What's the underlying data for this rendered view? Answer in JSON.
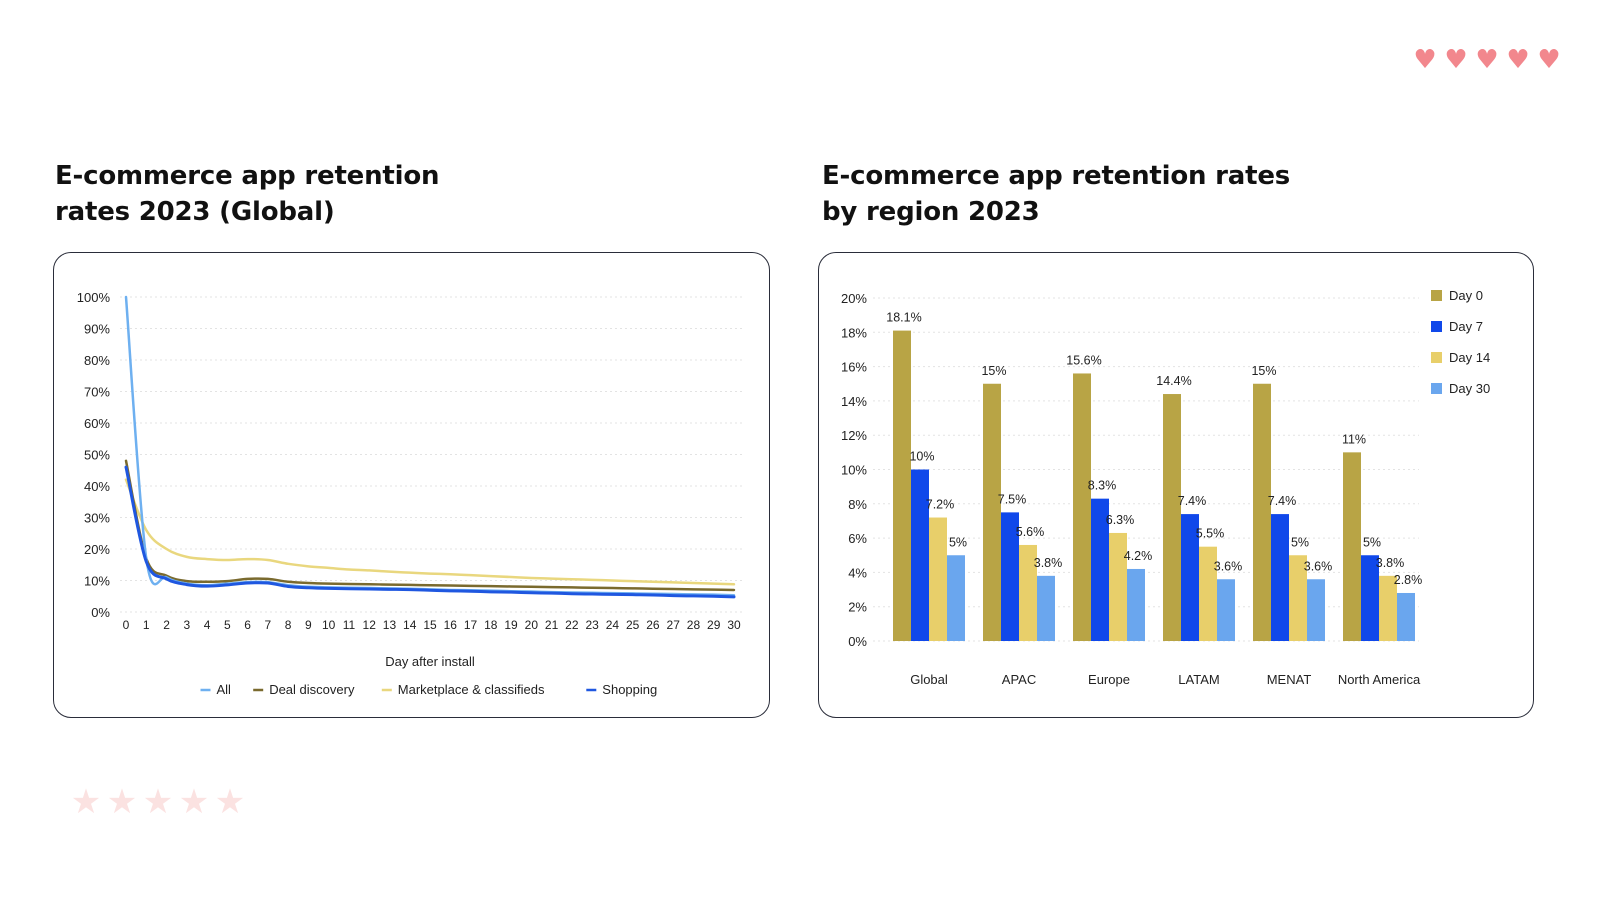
{
  "decor": {
    "hearts": [
      "♥",
      "♥",
      "♥",
      "♥",
      "♥"
    ],
    "hearts_color": "#f2878d",
    "stars": [
      "★",
      "★",
      "★",
      "★",
      "★"
    ],
    "stars_color": "#fbe2e1"
  },
  "left": {
    "title_line1": "E-commerce app retention",
    "title_line2": "rates 2023 (Global)"
  },
  "right": {
    "title_line1": "E-commerce app retention rates",
    "title_line2": "by region 2023"
  },
  "chart_data": [
    {
      "type": "line",
      "title": "E-commerce app retention rates 2023 (Global)",
      "xlabel": "Day after install",
      "ylabel": "",
      "x": [
        0,
        1,
        2,
        3,
        4,
        5,
        6,
        7,
        8,
        9,
        10,
        11,
        12,
        13,
        14,
        15,
        16,
        17,
        18,
        19,
        20,
        21,
        22,
        23,
        24,
        25,
        26,
        27,
        28,
        29,
        30
      ],
      "yticks": [
        "0%",
        "10%",
        "20%",
        "30%",
        "40%",
        "50%",
        "60%",
        "70%",
        "80%",
        "90%",
        "100%"
      ],
      "ylim": [
        0,
        100
      ],
      "grid": true,
      "legend": "bottom",
      "series": [
        {
          "name": "All",
          "color": "#6eb0f0",
          "values": [
            100,
            17,
            11,
            9,
            8.5,
            9,
            9.5,
            9.5,
            8.5,
            8,
            7.8,
            7.7,
            7.6,
            7.5,
            7.4,
            7.2,
            7,
            6.9,
            6.8,
            6.6,
            6.5,
            6.3,
            6.2,
            6.1,
            6,
            5.9,
            5.8,
            5.7,
            5.6,
            5.5,
            5.3
          ]
        },
        {
          "name": "Deal discovery",
          "color": "#7a6a2e",
          "values": [
            48,
            17,
            11.5,
            9.8,
            9.6,
            9.8,
            10.5,
            10.5,
            9.6,
            9.2,
            9,
            8.9,
            8.8,
            8.7,
            8.6,
            8.5,
            8.4,
            8.3,
            8.2,
            8.1,
            8,
            7.9,
            7.8,
            7.7,
            7.6,
            7.5,
            7.4,
            7.3,
            7.2,
            7.1,
            7
          ]
        },
        {
          "name": "Marketplace & classifieds",
          "color": "#e9d77e",
          "values": [
            42,
            26,
            20,
            17.5,
            16.8,
            16.5,
            16.8,
            16.5,
            15.3,
            14.5,
            14,
            13.5,
            13.2,
            12.8,
            12.5,
            12.2,
            12,
            11.7,
            11.4,
            11.1,
            10.8,
            10.6,
            10.4,
            10.2,
            10,
            9.8,
            9.6,
            9.4,
            9.2,
            9,
            8.8
          ]
        },
        {
          "name": "Shopping",
          "color": "#1f57e0",
          "values": [
            46,
            16,
            10.5,
            8.7,
            8.2,
            8.6,
            9.2,
            9.2,
            8.1,
            7.7,
            7.5,
            7.4,
            7.3,
            7.2,
            7.1,
            6.9,
            6.7,
            6.6,
            6.4,
            6.3,
            6.1,
            6,
            5.8,
            5.7,
            5.6,
            5.5,
            5.4,
            5.2,
            5.1,
            5,
            4.8
          ]
        }
      ]
    },
    {
      "type": "bar",
      "title": "E-commerce app retention rates by region 2023",
      "xlabel": "",
      "ylabel": "",
      "categories": [
        "Global",
        "APAC",
        "Europe",
        "LATAM",
        "MENAT",
        "North America"
      ],
      "yticks": [
        "0%",
        "2%",
        "4%",
        "6%",
        "8%",
        "10%",
        "12%",
        "14%",
        "16%",
        "18%",
        "20%"
      ],
      "ylim": [
        0,
        20
      ],
      "grid": true,
      "legend": "top-right",
      "series": [
        {
          "name": "Day 0",
          "color": "#b8a445",
          "values": [
            18.1,
            15,
            15.6,
            14.4,
            15,
            11
          ],
          "labels": [
            "18.1%",
            "15%",
            "15.6%",
            "14.4%",
            "15%",
            "11%"
          ]
        },
        {
          "name": "Day 7",
          "color": "#1048ea",
          "values": [
            10,
            7.5,
            8.3,
            7.4,
            7.4,
            5
          ],
          "labels": [
            "10%",
            "7.5%",
            "8.3%",
            "7.4%",
            "7.4%",
            "5%"
          ]
        },
        {
          "name": "Day 14",
          "color": "#e8cf6a",
          "values": [
            7.2,
            5.6,
            6.3,
            5.5,
            5,
            3.8
          ],
          "labels": [
            "7.2%",
            "5.6%",
            "6.3%",
            "5.5%",
            "5%",
            "3.8%"
          ]
        },
        {
          "name": "Day 30",
          "color": "#6aa6ee",
          "values": [
            5,
            3.8,
            4.2,
            3.6,
            3.6,
            2.8
          ],
          "labels": [
            "5%",
            "3.8%",
            "4.2%",
            "3.6%",
            "3.6%",
            "2.8%"
          ]
        }
      ]
    }
  ]
}
